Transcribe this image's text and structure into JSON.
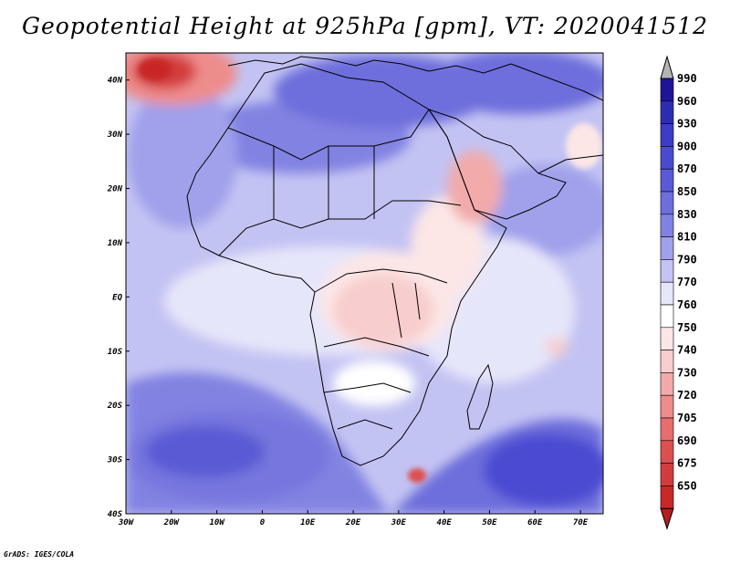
{
  "title": "Geopotential Height at 925hPa [gpm], VT: 2020041512",
  "credit": "GrADS: IGES/COLA",
  "map": {
    "region": "Africa",
    "lon_range": [
      -30,
      75
    ],
    "lat_range": [
      -40,
      45
    ],
    "lon_ticks": [
      {
        "lon": -30,
        "label": "30W"
      },
      {
        "lon": -20,
        "label": "20W"
      },
      {
        "lon": -10,
        "label": "10W"
      },
      {
        "lon": 0,
        "label": "0"
      },
      {
        "lon": 10,
        "label": "10E"
      },
      {
        "lon": 20,
        "label": "20E"
      },
      {
        "lon": 30,
        "label": "30E"
      },
      {
        "lon": 40,
        "label": "40E"
      },
      {
        "lon": 50,
        "label": "50E"
      },
      {
        "lon": 60,
        "label": "60E"
      },
      {
        "lon": 70,
        "label": "70E"
      }
    ],
    "lat_ticks": [
      {
        "lat": 40,
        "label": "40N"
      },
      {
        "lat": 30,
        "label": "30N"
      },
      {
        "lat": 20,
        "label": "20N"
      },
      {
        "lat": 10,
        "label": "10N"
      },
      {
        "lat": 0,
        "label": "EQ"
      },
      {
        "lat": -10,
        "label": "10S"
      },
      {
        "lat": -20,
        "label": "20S"
      },
      {
        "lat": -30,
        "label": "30S"
      },
      {
        "lat": -40,
        "label": "40S"
      }
    ]
  },
  "colorbar": {
    "levels": [
      "990",
      "960",
      "930",
      "900",
      "870",
      "850",
      "830",
      "810",
      "790",
      "770",
      "760",
      "750",
      "740",
      "730",
      "720",
      "705",
      "690",
      "675",
      "650"
    ],
    "colors": [
      "#1e1496",
      "#2d2db4",
      "#3c3cc8",
      "#4b4bd2",
      "#5a5ad6",
      "#6e6edc",
      "#8282e2",
      "#a0a0eb",
      "#c3c3f3",
      "#e6e6fa",
      "#ffffff",
      "#fce6e6",
      "#f8cdcd",
      "#f2aaaa",
      "#ee8c8c",
      "#e66e6e",
      "#dc5050",
      "#d23c3c",
      "#c82828"
    ],
    "top_arrow_color": "#b4b4b4",
    "bottom_arrow_color": "#b41e1e"
  }
}
